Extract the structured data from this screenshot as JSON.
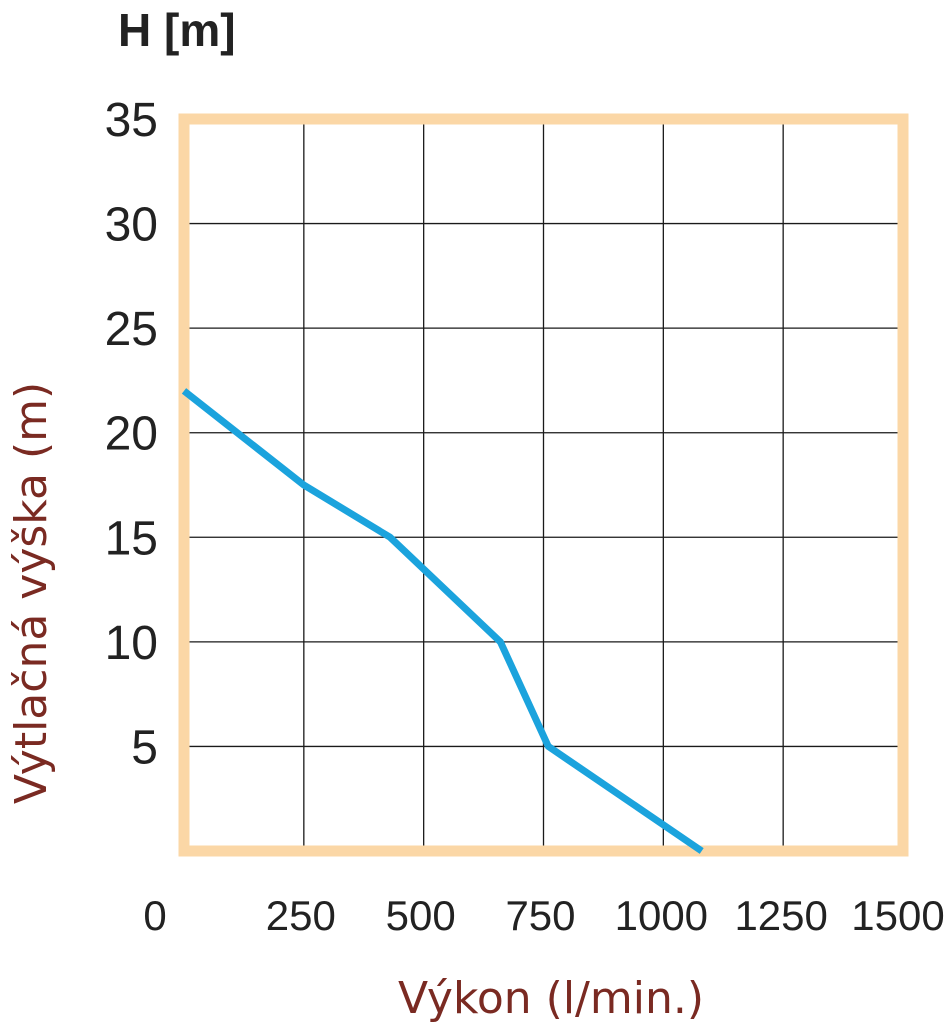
{
  "colors": {
    "frame": "#fbd7a6",
    "grid": "#1a1a1a",
    "series": "#1ba3dd",
    "axis_title": "#7a2a22",
    "tick_text": "#222222"
  },
  "chart_data": {
    "type": "line",
    "title": "",
    "unit_label": "H [m]",
    "xlabel": "Výkon (l/min.)",
    "ylabel": "Výtlačná výška (m)",
    "xlim": [
      0,
      1500
    ],
    "ylim": [
      0,
      35
    ],
    "x_ticks": [
      0,
      250,
      500,
      750,
      1000,
      1250,
      1500
    ],
    "x_tick_labels": [
      "0",
      "250",
      "500",
      "750",
      "1000",
      "1250",
      "1500"
    ],
    "y_ticks": [
      5,
      10,
      15,
      20,
      25,
      30,
      35
    ],
    "y_tick_labels": [
      "5",
      "10",
      "15",
      "20",
      "25",
      "30",
      "35"
    ],
    "grid": true,
    "legend": "none",
    "series": [
      {
        "x": [
          0,
          250,
          430,
          660,
          760,
          1080
        ],
        "y": [
          22,
          17.5,
          15,
          10,
          5,
          0
        ]
      }
    ]
  }
}
